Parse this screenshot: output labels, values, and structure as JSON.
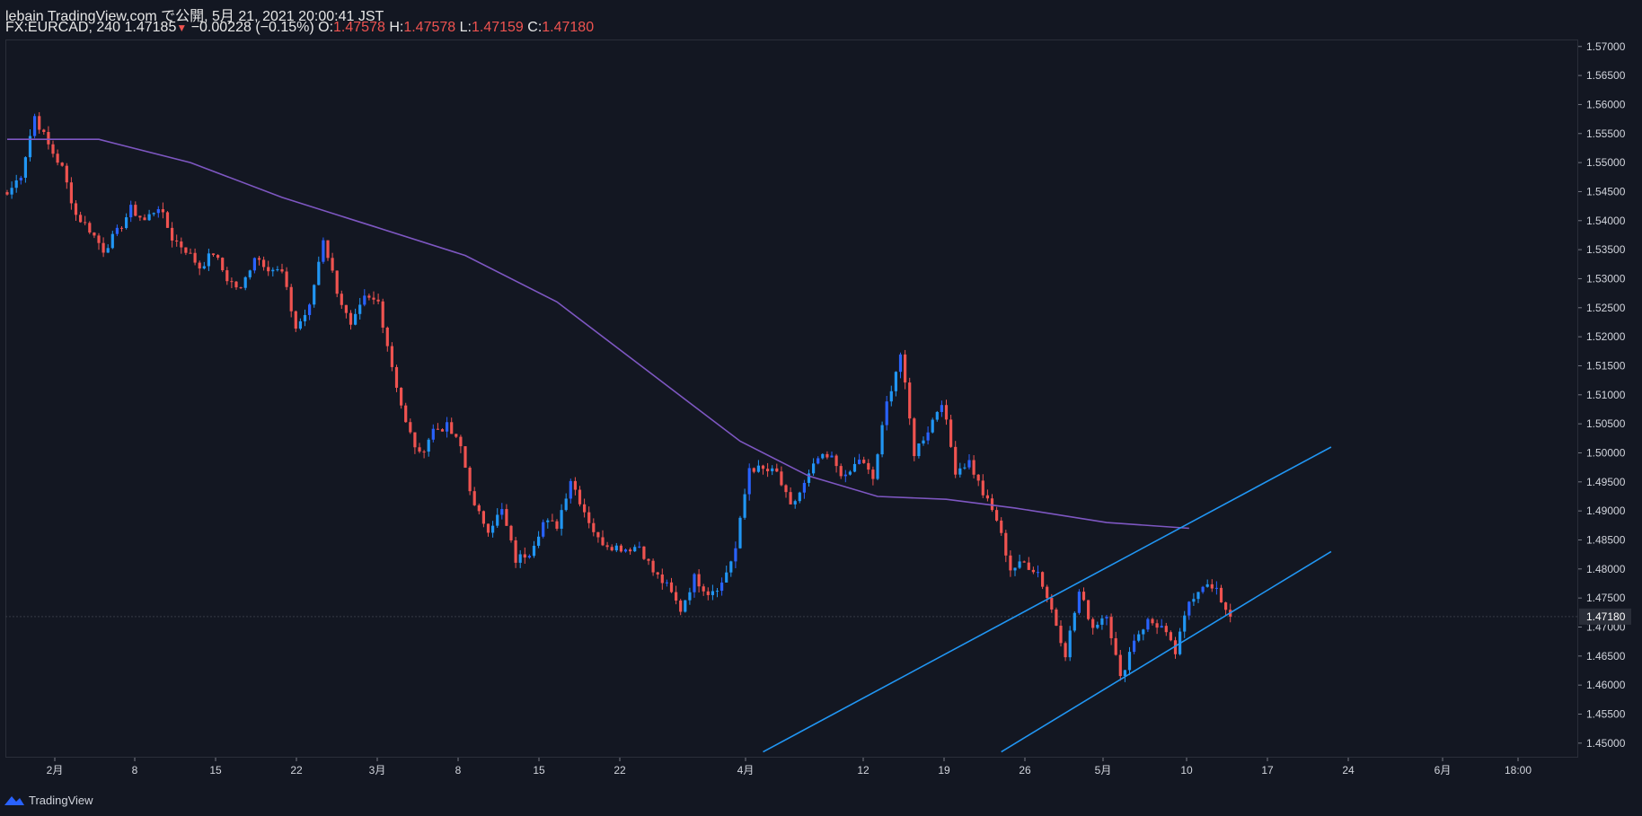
{
  "header": {
    "line1": "lebain TradingView.com で公開, 5月 21, 2021 20:00:41 JST",
    "symbol": "FX:EURCAD, 240",
    "last": "1.47185",
    "change": "−0.00228 (−0.15%)",
    "o_label": "O:",
    "o_value": "1.47578",
    "h_label": "H:",
    "h_value": "1.47578",
    "l_label": "L:",
    "l_value": "1.47159",
    "c_label": "C:",
    "c_value": "1.47180"
  },
  "footer": {
    "brand": "TradingView",
    "icon": "tradingview-logo-icon"
  },
  "colors": {
    "background": "#131722",
    "up": "#2962ff",
    "up_alt": "#2196f3",
    "down": "#ef5350",
    "ma": "#7e57c2",
    "trendline": "#2196f3",
    "axis_text": "#d1d4dc"
  },
  "chart_data": {
    "type": "candlestick",
    "title": "",
    "xlabel": "",
    "ylabel": "",
    "ylim": [
      1.4475,
      1.5712
    ],
    "y_ticks": [
      "1.57000",
      "1.56500",
      "1.56000",
      "1.55500",
      "1.55000",
      "1.54500",
      "1.54000",
      "1.53500",
      "1.53000",
      "1.52500",
      "1.52000",
      "1.51500",
      "1.51000",
      "1.50500",
      "1.50000",
      "1.49500",
      "1.49000",
      "1.48500",
      "1.48000",
      "1.47500",
      "1.47000",
      "1.46500",
      "1.46000",
      "1.45500",
      "1.45000"
    ],
    "x_ticks": [
      "2月",
      "8",
      "15",
      "22",
      "3月",
      "8",
      "15",
      "22",
      "4月",
      "12",
      "19",
      "26",
      "5月",
      "10",
      "17",
      "24",
      "6月",
      "18:00"
    ],
    "current_price": "1.47180",
    "price_path": [
      [
        0,
        1.5445
      ],
      [
        3,
        1.548
      ],
      [
        6,
        1.558
      ],
      [
        9,
        1.553
      ],
      [
        12,
        1.549
      ],
      [
        15,
        1.541
      ],
      [
        18,
        1.5385
      ],
      [
        21,
        1.535
      ],
      [
        24,
        1.538
      ],
      [
        27,
        1.542
      ],
      [
        30,
        1.54
      ],
      [
        33,
        1.5425
      ],
      [
        36,
        1.537
      ],
      [
        39,
        1.535
      ],
      [
        42,
        1.532
      ],
      [
        45,
        1.5345
      ],
      [
        48,
        1.53
      ],
      [
        51,
        1.528
      ],
      [
        54,
        1.534
      ],
      [
        57,
        1.532
      ],
      [
        60,
        1.531
      ],
      [
        63,
        1.5215
      ],
      [
        66,
        1.525
      ],
      [
        69,
        1.537
      ],
      [
        72,
        1.528
      ],
      [
        75,
        1.5215
      ],
      [
        78,
        1.5265
      ],
      [
        81,
        1.526
      ],
      [
        84,
        1.515
      ],
      [
        87,
        1.505
      ],
      [
        90,
        1.4995
      ],
      [
        93,
        1.504
      ],
      [
        96,
        1.5045
      ],
      [
        99,
        1.501
      ],
      [
        102,
        1.4905
      ],
      [
        105,
        1.487
      ],
      [
        108,
        1.49
      ],
      [
        111,
        1.4815
      ],
      [
        114,
        1.483
      ],
      [
        117,
        1.488
      ],
      [
        120,
        1.4875
      ],
      [
        123,
        1.4955
      ],
      [
        126,
        1.49
      ],
      [
        129,
        1.485
      ],
      [
        132,
        1.484
      ],
      [
        135,
        1.4835
      ],
      [
        138,
        1.484
      ],
      [
        141,
        1.4795
      ],
      [
        144,
        1.477
      ],
      [
        147,
        1.473
      ],
      [
        150,
        1.4785
      ],
      [
        153,
        1.476
      ],
      [
        156,
        1.4775
      ],
      [
        159,
        1.4835
      ],
      [
        162,
        1.4975
      ],
      [
        165,
        1.497
      ],
      [
        168,
        1.4965
      ],
      [
        171,
        1.4905
      ],
      [
        174,
        1.4945
      ],
      [
        177,
        1.499
      ],
      [
        180,
        1.499
      ],
      [
        183,
        1.4955
      ],
      [
        186,
        1.499
      ],
      [
        189,
        1.4955
      ],
      [
        192,
        1.5085
      ],
      [
        195,
        1.517
      ],
      [
        198,
        1.5
      ],
      [
        201,
        1.504
      ],
      [
        204,
        1.509
      ],
      [
        207,
        1.497
      ],
      [
        210,
        1.4985
      ],
      [
        213,
        1.493
      ],
      [
        216,
        1.4885
      ],
      [
        219,
        1.48
      ],
      [
        222,
        1.481
      ],
      [
        225,
        1.4795
      ],
      [
        228,
        1.473
      ],
      [
        231,
        1.4655
      ],
      [
        234,
        1.476
      ],
      [
        237,
        1.47
      ],
      [
        240,
        1.4725
      ],
      [
        243,
        1.461
      ],
      [
        246,
        1.468
      ],
      [
        249,
        1.471
      ],
      [
        252,
        1.47
      ],
      [
        255,
        1.4655
      ],
      [
        258,
        1.4745
      ],
      [
        261,
        1.4775
      ],
      [
        264,
        1.476
      ],
      [
        267,
        1.4718
      ]
    ],
    "ma_path": [
      [
        0,
        1.554
      ],
      [
        20,
        1.554
      ],
      [
        40,
        1.55
      ],
      [
        60,
        1.544
      ],
      [
        80,
        1.539
      ],
      [
        100,
        1.534
      ],
      [
        120,
        1.526
      ],
      [
        140,
        1.514
      ],
      [
        160,
        1.502
      ],
      [
        175,
        1.496
      ],
      [
        190,
        1.4925
      ],
      [
        205,
        1.492
      ],
      [
        220,
        1.4905
      ],
      [
        240,
        1.488
      ],
      [
        258,
        1.487
      ]
    ],
    "trendlines": [
      {
        "from": [
          165,
          1.4485
        ],
        "to": [
          289,
          1.501
        ]
      },
      {
        "from": [
          217,
          1.4485
        ],
        "to": [
          289,
          1.483
        ]
      }
    ]
  }
}
